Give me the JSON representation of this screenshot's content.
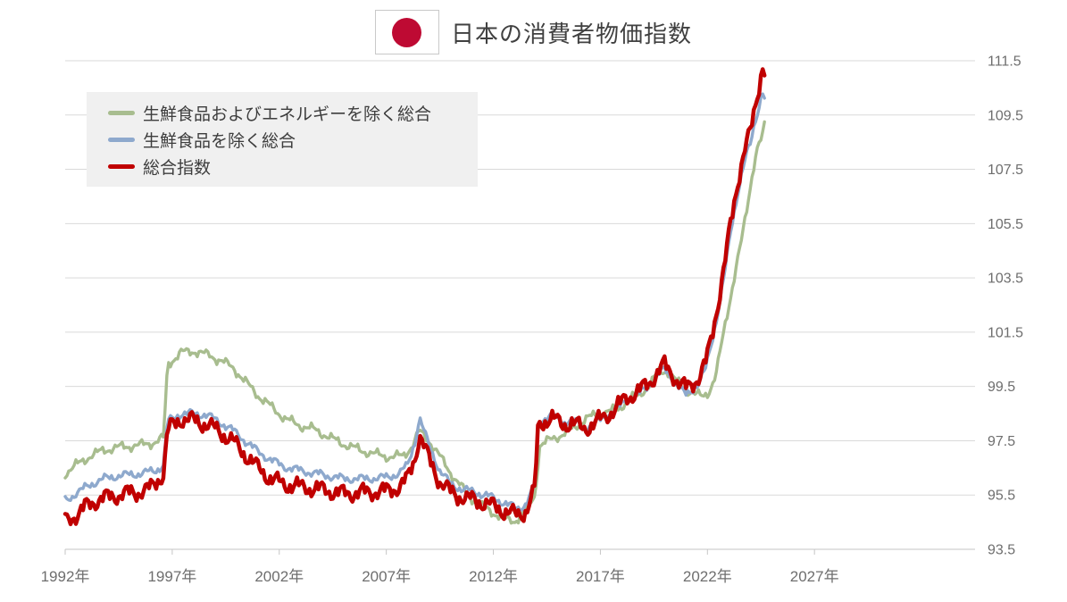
{
  "title": {
    "text": "日本の消費者物価指数",
    "flag_icon": "japan-flag",
    "flag_red": "#be0a33"
  },
  "legend": {
    "position": "top-left",
    "items": [
      {
        "label": "生鮮食品およびエネルギーを除く総合",
        "color": "#a8bd8f"
      },
      {
        "label": "生鮮食品を除く総合",
        "color": "#8ea9cd"
      },
      {
        "label": "総合指数",
        "color": "#c00000"
      }
    ]
  },
  "chart_data": {
    "type": "line",
    "title": "日本の消費者物価指数",
    "xlabel": "",
    "ylabel": "",
    "x_unit": "year",
    "grid": "horizontal",
    "grid_color": "#d9d9d9",
    "axis_color": "#c6c6c6",
    "label_color": "#6e6e6e",
    "legend_position": "top-left",
    "x_range": [
      1992,
      2034.5
    ],
    "y_range": [
      93.5,
      111.5
    ],
    "x_ticks": [
      {
        "year": 1992,
        "label": "1992年"
      },
      {
        "year": 1997,
        "label": "1997年"
      },
      {
        "year": 2002,
        "label": "2002年"
      },
      {
        "year": 2007,
        "label": "2007年"
      },
      {
        "year": 2012,
        "label": "2012年"
      },
      {
        "year": 2017,
        "label": "2017年"
      },
      {
        "year": 2022,
        "label": "2022年"
      },
      {
        "year": 2027,
        "label": "2027年"
      }
    ],
    "y_ticks": [
      93.5,
      95.5,
      97.5,
      99.5,
      101.5,
      103.5,
      105.5,
      107.5,
      109.5,
      111.5
    ],
    "frequency": "monthly",
    "series": [
      {
        "name": "生鮮食品およびエネルギーを除く総合",
        "color": "#a8bd8f",
        "width": 3.4,
        "noise_amplitude": 0.22,
        "noise_phase": 2.4,
        "max": 109.25,
        "anchors": [
          [
            1992.0,
            96.3
          ],
          [
            1992.6,
            96.65
          ],
          [
            1993.2,
            96.95
          ],
          [
            1993.8,
            97.15
          ],
          [
            1994.4,
            97.25
          ],
          [
            1995.0,
            97.3
          ],
          [
            1995.6,
            97.35
          ],
          [
            1996.2,
            97.45
          ],
          [
            1996.6,
            97.6
          ],
          [
            1996.78,
            100.3
          ],
          [
            1997.4,
            100.75
          ],
          [
            1998.1,
            100.8
          ],
          [
            1998.7,
            100.65
          ],
          [
            1999.3,
            100.45
          ],
          [
            1999.9,
            100.15
          ],
          [
            2000.5,
            99.6
          ],
          [
            2001.1,
            99.1
          ],
          [
            2001.7,
            98.7
          ],
          [
            2002.3,
            98.3
          ],
          [
            2003.0,
            98.05
          ],
          [
            2003.7,
            97.9
          ],
          [
            2004.4,
            97.6
          ],
          [
            2005.1,
            97.35
          ],
          [
            2005.8,
            97.15
          ],
          [
            2006.5,
            97.0
          ],
          [
            2007.2,
            96.9
          ],
          [
            2007.8,
            96.95
          ],
          [
            2008.2,
            97.3
          ],
          [
            2008.55,
            97.85
          ],
          [
            2009.0,
            97.5
          ],
          [
            2009.6,
            96.8
          ],
          [
            2010.2,
            96.1
          ],
          [
            2010.8,
            95.5
          ],
          [
            2011.4,
            95.15
          ],
          [
            2012.0,
            94.85
          ],
          [
            2012.6,
            94.6
          ],
          [
            2013.0,
            94.55
          ],
          [
            2013.45,
            94.85
          ],
          [
            2013.8,
            95.3
          ],
          [
            2013.95,
            95.5
          ],
          [
            2014.15,
            97.3
          ],
          [
            2014.8,
            97.6
          ],
          [
            2015.3,
            97.75
          ],
          [
            2015.8,
            98.0
          ],
          [
            2016.3,
            98.3
          ],
          [
            2016.8,
            98.45
          ],
          [
            2017.3,
            98.55
          ],
          [
            2017.8,
            98.65
          ],
          [
            2018.3,
            99.0
          ],
          [
            2018.8,
            99.2
          ],
          [
            2019.3,
            99.55
          ],
          [
            2019.75,
            100.05
          ],
          [
            2020.05,
            100.1
          ],
          [
            2020.4,
            99.8
          ],
          [
            2020.7,
            99.6
          ],
          [
            2021.0,
            99.4
          ],
          [
            2021.4,
            99.2
          ],
          [
            2021.8,
            99.15
          ],
          [
            2022.1,
            99.35
          ],
          [
            2022.4,
            99.9
          ],
          [
            2022.6,
            100.8
          ],
          [
            2022.85,
            101.9
          ],
          [
            2023.1,
            102.9
          ],
          [
            2023.35,
            103.9
          ],
          [
            2023.6,
            104.9
          ],
          [
            2023.85,
            106.1
          ],
          [
            2024.05,
            107.1
          ],
          [
            2024.2,
            107.8
          ],
          [
            2024.35,
            108.3
          ],
          [
            2024.5,
            108.55
          ],
          [
            2024.6,
            108.8
          ],
          [
            2024.67,
            109.25
          ]
        ]
      },
      {
        "name": "生鮮食品を除く総合",
        "color": "#8ea9cd",
        "width": 3.4,
        "noise_amplitude": 0.2,
        "noise_phase": 0.5,
        "max": 110.35,
        "anchors": [
          [
            1992.0,
            95.3
          ],
          [
            1992.6,
            95.6
          ],
          [
            1993.2,
            95.9
          ],
          [
            1993.8,
            96.1
          ],
          [
            1994.4,
            96.2
          ],
          [
            1995.0,
            96.25
          ],
          [
            1995.6,
            96.3
          ],
          [
            1996.2,
            96.4
          ],
          [
            1996.6,
            96.6
          ],
          [
            1996.78,
            98.2
          ],
          [
            1997.4,
            98.5
          ],
          [
            1998.0,
            98.5
          ],
          [
            1998.6,
            98.45
          ],
          [
            1999.2,
            98.2
          ],
          [
            1999.8,
            97.9
          ],
          [
            2000.4,
            97.5
          ],
          [
            2001.0,
            97.1
          ],
          [
            2001.6,
            96.8
          ],
          [
            2002.2,
            96.55
          ],
          [
            2003.0,
            96.4
          ],
          [
            2004.0,
            96.25
          ],
          [
            2005.0,
            96.1
          ],
          [
            2006.0,
            96.1
          ],
          [
            2007.0,
            96.15
          ],
          [
            2007.6,
            96.3
          ],
          [
            2008.0,
            96.6
          ],
          [
            2008.35,
            97.5
          ],
          [
            2008.55,
            98.35
          ],
          [
            2009.0,
            97.3
          ],
          [
            2009.5,
            96.4
          ],
          [
            2010.0,
            95.9
          ],
          [
            2010.6,
            95.7
          ],
          [
            2011.2,
            95.6
          ],
          [
            2011.8,
            95.45
          ],
          [
            2012.4,
            95.25
          ],
          [
            2013.1,
            95.0
          ],
          [
            2013.5,
            95.15
          ],
          [
            2013.8,
            95.6
          ],
          [
            2013.95,
            96.0
          ],
          [
            2014.1,
            98.2
          ],
          [
            2014.7,
            98.45
          ],
          [
            2015.2,
            98.2
          ],
          [
            2015.7,
            98.25
          ],
          [
            2016.2,
            98.0
          ],
          [
            2016.7,
            98.1
          ],
          [
            2017.2,
            98.4
          ],
          [
            2017.7,
            98.6
          ],
          [
            2018.2,
            99.0
          ],
          [
            2018.7,
            99.15
          ],
          [
            2019.2,
            99.5
          ],
          [
            2019.7,
            99.9
          ],
          [
            2020.0,
            100.15
          ],
          [
            2020.35,
            99.85
          ],
          [
            2020.7,
            99.4
          ],
          [
            2021.0,
            99.2
          ],
          [
            2021.3,
            99.4
          ],
          [
            2021.6,
            99.6
          ],
          [
            2021.9,
            100.1
          ],
          [
            2022.1,
            100.8
          ],
          [
            2022.35,
            101.7
          ],
          [
            2022.6,
            102.7
          ],
          [
            2022.85,
            103.9
          ],
          [
            2023.1,
            105.3
          ],
          [
            2023.4,
            106.6
          ],
          [
            2023.65,
            107.5
          ],
          [
            2023.85,
            108.1
          ],
          [
            2024.0,
            108.4
          ],
          [
            2024.15,
            109.0
          ],
          [
            2024.3,
            109.5
          ],
          [
            2024.45,
            110.0
          ],
          [
            2024.58,
            110.35
          ],
          [
            2024.67,
            110.1
          ]
        ]
      },
      {
        "name": "総合指数",
        "color": "#c00000",
        "width": 4.5,
        "noise_amplitude": 0.42,
        "noise_phase": 0,
        "max": 111.3,
        "anchors": [
          [
            1992.0,
            94.55
          ],
          [
            1992.6,
            94.8
          ],
          [
            1993.0,
            95.1
          ],
          [
            1993.6,
            95.35
          ],
          [
            1994.2,
            95.45
          ],
          [
            1994.8,
            95.55
          ],
          [
            1995.4,
            95.6
          ],
          [
            1996.0,
            95.75
          ],
          [
            1996.6,
            96.3
          ],
          [
            1996.78,
            97.9
          ],
          [
            1997.4,
            98.3
          ],
          [
            1998.0,
            98.25
          ],
          [
            1998.6,
            98.1
          ],
          [
            1999.2,
            97.85
          ],
          [
            1999.8,
            97.5
          ],
          [
            2000.4,
            97.0
          ],
          [
            2001.0,
            96.5
          ],
          [
            2001.6,
            96.1
          ],
          [
            2002.2,
            95.9
          ],
          [
            2003.0,
            95.8
          ],
          [
            2004.0,
            95.7
          ],
          [
            2005.0,
            95.55
          ],
          [
            2006.0,
            95.6
          ],
          [
            2007.0,
            95.65
          ],
          [
            2007.6,
            95.8
          ],
          [
            2008.0,
            96.1
          ],
          [
            2008.35,
            96.9
          ],
          [
            2008.55,
            97.75
          ],
          [
            2009.0,
            96.8
          ],
          [
            2009.5,
            96.0
          ],
          [
            2010.0,
            95.6
          ],
          [
            2010.6,
            95.4
          ],
          [
            2011.2,
            95.3
          ],
          [
            2011.8,
            95.15
          ],
          [
            2012.4,
            94.95
          ],
          [
            2013.1,
            94.75
          ],
          [
            2013.5,
            94.9
          ],
          [
            2013.8,
            95.4
          ],
          [
            2013.95,
            95.8
          ],
          [
            2014.1,
            98.1
          ],
          [
            2014.7,
            98.35
          ],
          [
            2015.2,
            98.1
          ],
          [
            2015.7,
            98.15
          ],
          [
            2016.2,
            97.95
          ],
          [
            2016.7,
            98.1
          ],
          [
            2017.2,
            98.4
          ],
          [
            2017.7,
            98.65
          ],
          [
            2018.2,
            99.1
          ],
          [
            2018.7,
            99.25
          ],
          [
            2019.2,
            99.6
          ],
          [
            2019.7,
            100.0
          ],
          [
            2020.0,
            100.3
          ],
          [
            2020.35,
            100.0
          ],
          [
            2020.7,
            99.55
          ],
          [
            2021.0,
            99.45
          ],
          [
            2021.3,
            99.65
          ],
          [
            2021.6,
            99.8
          ],
          [
            2021.9,
            100.3
          ],
          [
            2022.1,
            101.0
          ],
          [
            2022.35,
            102.0
          ],
          [
            2022.6,
            103.0
          ],
          [
            2022.85,
            104.2
          ],
          [
            2023.1,
            105.6
          ],
          [
            2023.4,
            107.0
          ],
          [
            2023.65,
            107.9
          ],
          [
            2023.85,
            108.5
          ],
          [
            2024.0,
            108.8
          ],
          [
            2024.15,
            109.5
          ],
          [
            2024.3,
            110.1
          ],
          [
            2024.45,
            110.8
          ],
          [
            2024.58,
            111.3
          ],
          [
            2024.67,
            111.05
          ]
        ]
      }
    ]
  }
}
